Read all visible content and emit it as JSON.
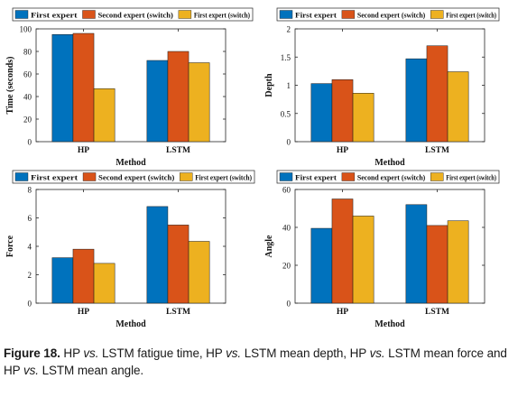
{
  "colors": {
    "series": [
      "#0072BD",
      "#D95319",
      "#EDB120"
    ],
    "axis": "#262626"
  },
  "legend_labels": [
    "First expert",
    "Second expert (switch)",
    "First expert (switch)"
  ],
  "chart_data": [
    {
      "type": "bar",
      "categories": [
        "HP",
        "LSTM"
      ],
      "xlabel": "Method",
      "ylabel": "Time (seconds)",
      "ylim": [
        0,
        100
      ],
      "yticks": [
        0,
        20,
        40,
        60,
        80,
        100
      ],
      "legend": "top",
      "series": [
        {
          "name": "First expert",
          "values": [
            95,
            72
          ]
        },
        {
          "name": "Second expert (switch)",
          "values": [
            96,
            80
          ]
        },
        {
          "name": "First expert (switch)",
          "values": [
            47,
            70
          ]
        }
      ]
    },
    {
      "type": "bar",
      "categories": [
        "HP",
        "LSTM"
      ],
      "xlabel": "Method",
      "ylabel": "Depth",
      "ylim": [
        0,
        2
      ],
      "yticks": [
        0,
        0.5,
        1,
        1.5,
        2
      ],
      "legend": "top",
      "series": [
        {
          "name": "First expert",
          "values": [
            1.03,
            1.47
          ]
        },
        {
          "name": "Second expert (switch)",
          "values": [
            1.1,
            1.7
          ]
        },
        {
          "name": "First expert (switch)",
          "values": [
            0.86,
            1.24
          ]
        }
      ]
    },
    {
      "type": "bar",
      "categories": [
        "HP",
        "LSTM"
      ],
      "xlabel": "Method",
      "ylabel": "Force",
      "ylim": [
        0,
        8
      ],
      "yticks": [
        0,
        2,
        4,
        6,
        8
      ],
      "legend": "top",
      "series": [
        {
          "name": "First expert",
          "values": [
            3.2,
            6.8
          ]
        },
        {
          "name": "Second expert (switch)",
          "values": [
            3.8,
            5.5
          ]
        },
        {
          "name": "First expert (switch)",
          "values": [
            2.8,
            4.35
          ]
        }
      ]
    },
    {
      "type": "bar",
      "categories": [
        "HP",
        "LSTM"
      ],
      "xlabel": "Method",
      "ylabel": "Angle",
      "ylim": [
        0,
        60
      ],
      "yticks": [
        0,
        20,
        40,
        60
      ],
      "legend": "top",
      "series": [
        {
          "name": "First expert",
          "values": [
            39.5,
            52
          ]
        },
        {
          "name": "Second expert (switch)",
          "values": [
            55,
            41
          ]
        },
        {
          "name": "First expert (switch)",
          "values": [
            46,
            43.5
          ]
        }
      ]
    }
  ],
  "caption": {
    "label": "Figure 18.",
    "parts": [
      {
        "text": " HP ",
        "italic": false
      },
      {
        "text": "vs.",
        "italic": true
      },
      {
        "text": " LSTM fatigue time, HP ",
        "italic": false
      },
      {
        "text": "vs.",
        "italic": true
      },
      {
        "text": " LSTM mean depth, HP ",
        "italic": false
      },
      {
        "text": "vs.",
        "italic": true
      },
      {
        "text": " LSTM mean force and HP ",
        "italic": false
      },
      {
        "text": "vs.",
        "italic": true
      },
      {
        "text": " LSTM mean angle.",
        "italic": false
      }
    ]
  }
}
